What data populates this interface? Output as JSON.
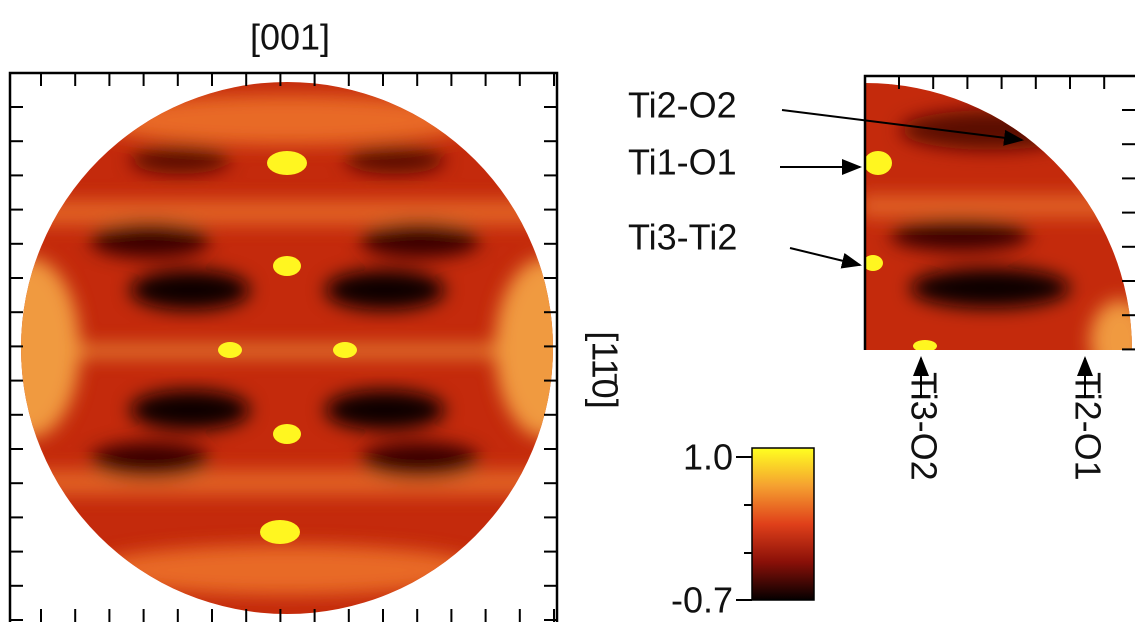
{
  "figure": {
    "title": "[001]",
    "side_axis_label": "[11̄0]",
    "annotations": [
      "Ti2-O2",
      "Ti1-O1",
      "Ti3-Ti2",
      "Ti3-O2",
      "Ti2-O1"
    ],
    "colorbar": {
      "max_label": "1.0",
      "min_label": "-0.7"
    }
  }
}
